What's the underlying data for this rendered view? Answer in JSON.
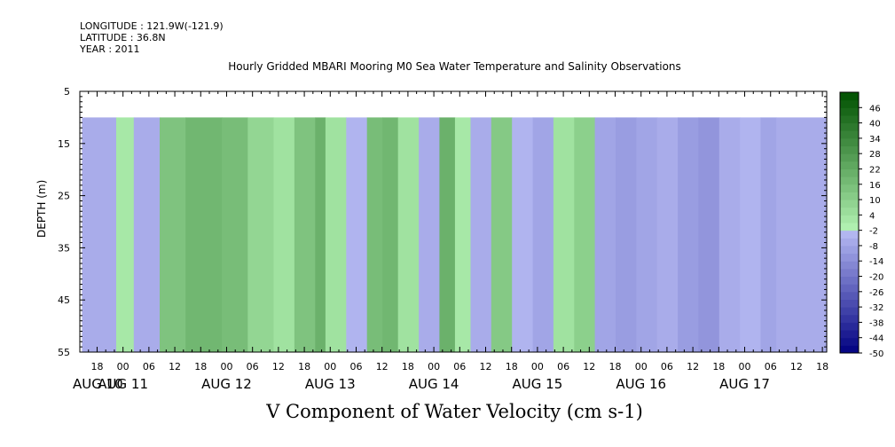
{
  "header": {
    "longitude": "LONGITUDE : 121.9W(-121.9)",
    "latitude": "LATITUDE : 36.8N",
    "year": "YEAR : 2011"
  },
  "chart_data": {
    "type": "heatmap",
    "title": "Hourly Gridded MBARI Mooring M0 Sea Water Temperature and Salinity Observations",
    "xlabel": "V Component of Water Velocity (cm s-1)",
    "ylabel": "DEPTH (m)",
    "ylim": [
      55,
      5
    ],
    "y_ticks": [
      5,
      15,
      25,
      35,
      45,
      55
    ],
    "data_depth_range": [
      10,
      55
    ],
    "x_range_hours": [
      "AUG 10 14",
      "AUG 17 19"
    ],
    "x_hour_ticks": [
      "18",
      "00",
      "06",
      "12",
      "18",
      "00",
      "06",
      "12",
      "18",
      "00",
      "06",
      "12",
      "18",
      "00",
      "06",
      "12",
      "18",
      "00",
      "06",
      "12",
      "18",
      "00",
      "06",
      "12",
      "18",
      "00",
      "06",
      "12",
      "18",
      "00",
      "06",
      "12"
    ],
    "x_day_labels": [
      "AUG 10",
      "AUG 11",
      "AUG 12",
      "AUG 13",
      "AUG 14",
      "AUG 15",
      "AUG 16",
      "AUG 17"
    ],
    "colorbar": {
      "levels": [
        -50,
        -44,
        -38,
        -32,
        -26,
        -20,
        -14,
        -8,
        -2,
        4,
        10,
        16,
        22,
        28,
        34,
        40,
        46
      ],
      "min": -50,
      "max": 52,
      "negative_color_light": "#b8bcf4",
      "negative_color_dark": "#000080",
      "positive_color_light": "#b4f4b4",
      "positive_color_dark": "#005000"
    },
    "column_times_day": [
      0.0,
      0.33,
      0.5,
      0.75,
      1.0,
      1.35,
      1.6,
      1.85,
      2.05,
      2.25,
      2.35,
      2.55,
      2.75,
      2.9,
      3.05,
      3.25,
      3.45,
      3.6,
      3.75,
      3.95,
      4.15,
      4.35,
      4.55,
      4.75,
      4.95,
      5.15,
      5.35,
      5.55,
      5.75,
      5.95,
      6.15,
      6.35,
      6.55,
      6.7
    ],
    "column_velocity_cm_s": [
      -6,
      2,
      -6,
      14,
      18,
      16,
      8,
      4,
      14,
      20,
      4,
      -4,
      16,
      18,
      4,
      -6,
      20,
      2,
      -6,
      12,
      -4,
      -8,
      4,
      10,
      -8,
      -10,
      -8,
      -6,
      -10,
      -12,
      -6,
      -4,
      -8,
      -6
    ]
  }
}
